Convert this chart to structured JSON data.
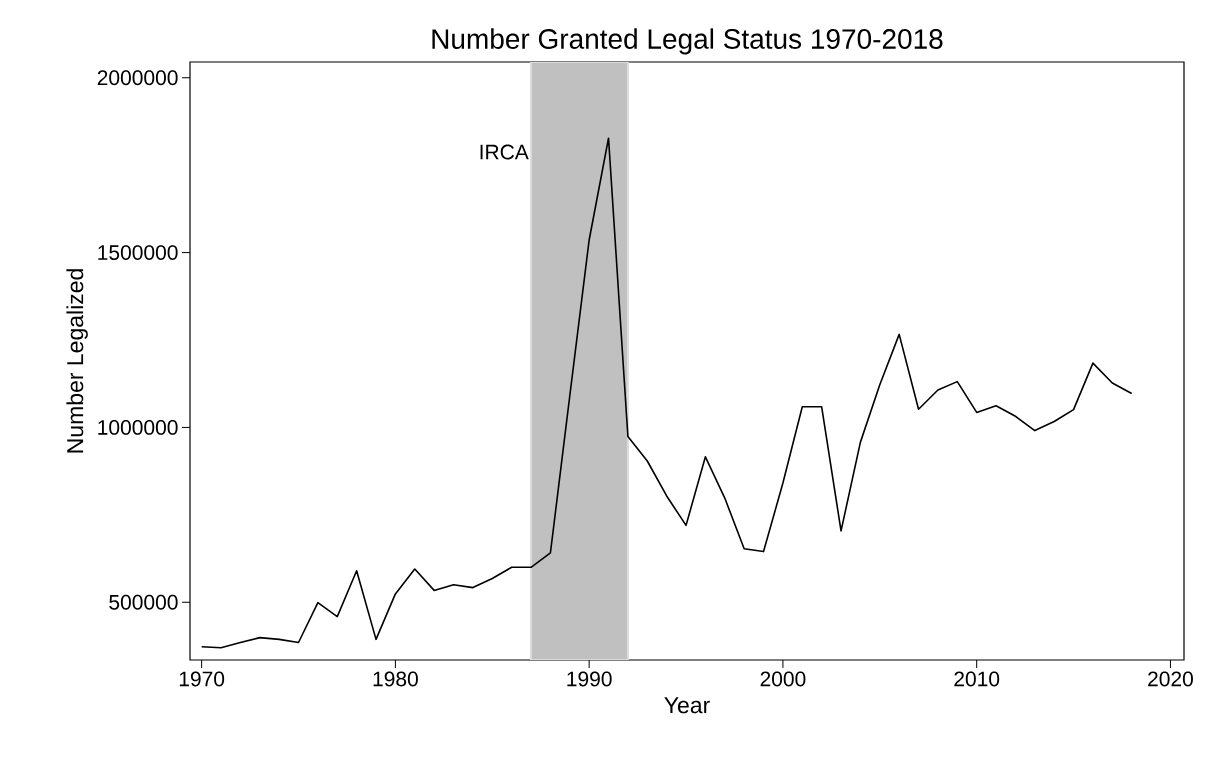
{
  "chart_data": {
    "type": "line",
    "title": "Number Granted Legal Status 1970-2018",
    "xlabel": "Year",
    "ylabel": "Number Legalized",
    "x": [
      1970,
      1971,
      1972,
      1973,
      1974,
      1975,
      1976,
      1977,
      1978,
      1979,
      1980,
      1981,
      1982,
      1983,
      1984,
      1985,
      1986,
      1987,
      1988,
      1989,
      1990,
      1991,
      1992,
      1993,
      1994,
      1995,
      1996,
      1997,
      1998,
      1999,
      2000,
      2001,
      2002,
      2003,
      2004,
      2005,
      2006,
      2007,
      2008,
      2009,
      2010,
      2011,
      2012,
      2013,
      2014,
      2015,
      2016,
      2017,
      2018
    ],
    "series": [
      {
        "color": "#000000",
        "values": [
          373000,
          370000,
          385000,
          399000,
          394000,
          385000,
          499000,
          459000,
          590000,
          394000,
          524000,
          595000,
          534000,
          550000,
          542000,
          568000,
          600000,
          600000,
          641000,
          1090000,
          1536000,
          1827000,
          974000,
          904000,
          804000,
          720000,
          916000,
          798000,
          653000,
          645000,
          841000,
          1059000,
          1059000,
          704000,
          958000,
          1122000,
          1266000,
          1052000,
          1107000,
          1131000,
          1043000,
          1062000,
          1032000,
          991000,
          1017000,
          1051000,
          1184000,
          1127000,
          1097000
        ]
      }
    ],
    "xlim": [
      1969.4,
      2020.7
    ],
    "ylim": [
      335000,
      2045000
    ],
    "xticks": [
      1970,
      1980,
      1990,
      2000,
      2010,
      2020
    ],
    "yticks": [
      500000,
      1000000,
      1500000,
      2000000
    ],
    "bands": [
      {
        "axis": "x",
        "from": 1987,
        "to": 1992,
        "label": "IRCA",
        "color": "#c0c0c0"
      }
    ],
    "grid": false,
    "marker": "none",
    "line_style": "solid"
  }
}
